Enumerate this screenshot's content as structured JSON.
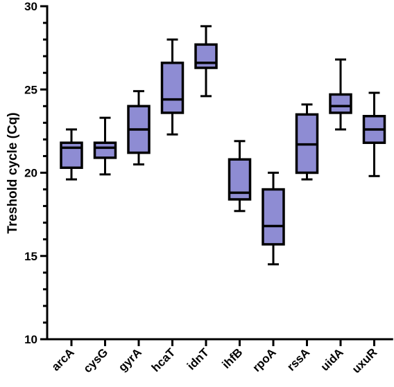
{
  "chart_data": {
    "type": "box",
    "title": "",
    "xlabel": "",
    "ylabel": "Treshold cycle (Cq)",
    "ylim": [
      10,
      30
    ],
    "yticks": [
      10,
      15,
      20,
      25,
      30
    ],
    "grid": false,
    "legend": "none",
    "categories": [
      "arcA",
      "cysG",
      "gyrA",
      "hcaT",
      "idnT",
      "ihfB",
      "rpoA",
      "rssA",
      "uidA",
      "uxuR"
    ],
    "boxes": [
      {
        "category": "arcA",
        "min": 19.6,
        "q1": 20.3,
        "median": 21.5,
        "q3": 21.8,
        "max": 22.6
      },
      {
        "category": "cysG",
        "min": 19.9,
        "q1": 20.9,
        "median": 21.5,
        "q3": 21.8,
        "max": 23.3
      },
      {
        "category": "gyrA",
        "min": 20.5,
        "q1": 21.2,
        "median": 22.6,
        "q3": 24.0,
        "max": 24.9
      },
      {
        "category": "hcaT",
        "min": 22.3,
        "q1": 23.6,
        "median": 24.4,
        "q3": 26.6,
        "max": 28.0
      },
      {
        "category": "idnT",
        "min": 24.6,
        "q1": 26.3,
        "median": 26.6,
        "q3": 27.7,
        "max": 28.8
      },
      {
        "category": "ihfB",
        "min": 17.7,
        "q1": 18.4,
        "median": 18.8,
        "q3": 20.8,
        "max": 21.9
      },
      {
        "category": "rpoA",
        "min": 14.5,
        "q1": 15.7,
        "median": 16.8,
        "q3": 19.0,
        "max": 20.0
      },
      {
        "category": "rssA",
        "min": 19.6,
        "q1": 20.0,
        "median": 21.7,
        "q3": 23.5,
        "max": 24.1
      },
      {
        "category": "uidA",
        "min": 22.6,
        "q1": 23.6,
        "median": 24.0,
        "q3": 24.7,
        "max": 26.8
      },
      {
        "category": "uxuR",
        "min": 19.8,
        "q1": 21.8,
        "median": 22.6,
        "q3": 23.4,
        "max": 24.8
      }
    ],
    "colors": {
      "box_fill": "#8e8cd3",
      "stroke": "#000000"
    }
  }
}
